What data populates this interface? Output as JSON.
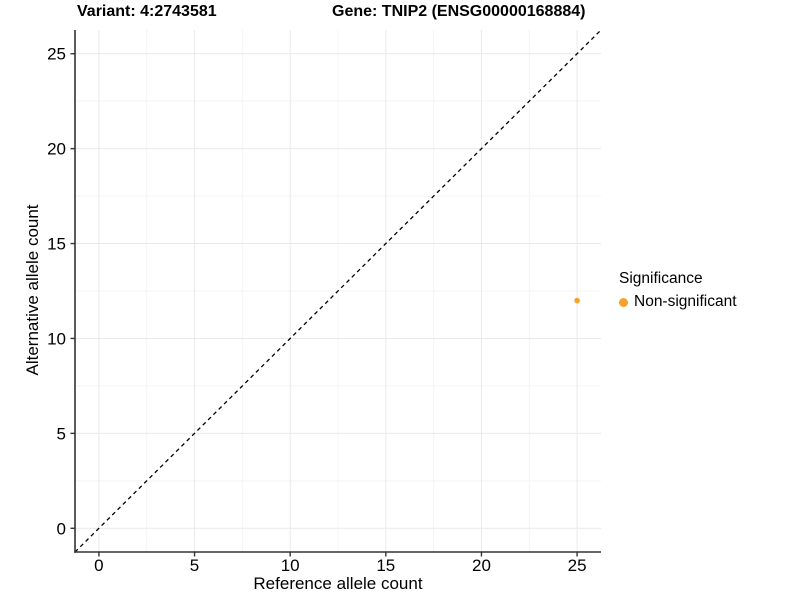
{
  "chart_data": {
    "type": "scatter",
    "title_variant": "Variant: 4:2743581",
    "title_gene": "Gene: TNIP2 (ENSG00000168884)",
    "xlabel": "Reference allele count",
    "ylabel": "Alternative allele count",
    "xlim": [
      -1.25,
      26.25
    ],
    "ylim": [
      -1.25,
      26.25
    ],
    "xticks": [
      0,
      5,
      10,
      15,
      20,
      25
    ],
    "yticks": [
      0,
      5,
      10,
      15,
      20,
      25
    ],
    "x_minor_ticks": [
      2.5,
      7.5,
      12.5,
      17.5,
      22.5
    ],
    "y_minor_ticks": [
      2.5,
      7.5,
      12.5,
      17.5,
      22.5
    ],
    "grid": "major+minor",
    "reference_line": {
      "type": "identity",
      "style": "dashed",
      "color": "#000000"
    },
    "points": [
      {
        "x": 25,
        "y": 12,
        "series": "Non-significant"
      }
    ],
    "legend": {
      "title": "Significance",
      "position": "right",
      "entries": [
        {
          "label": "Non-significant",
          "color": "#F9A229"
        }
      ]
    },
    "colors": {
      "grid_major": "#E9E9E9",
      "grid_minor": "#F4F4F4",
      "axis": "#333333",
      "tick_label": "#000000"
    }
  }
}
